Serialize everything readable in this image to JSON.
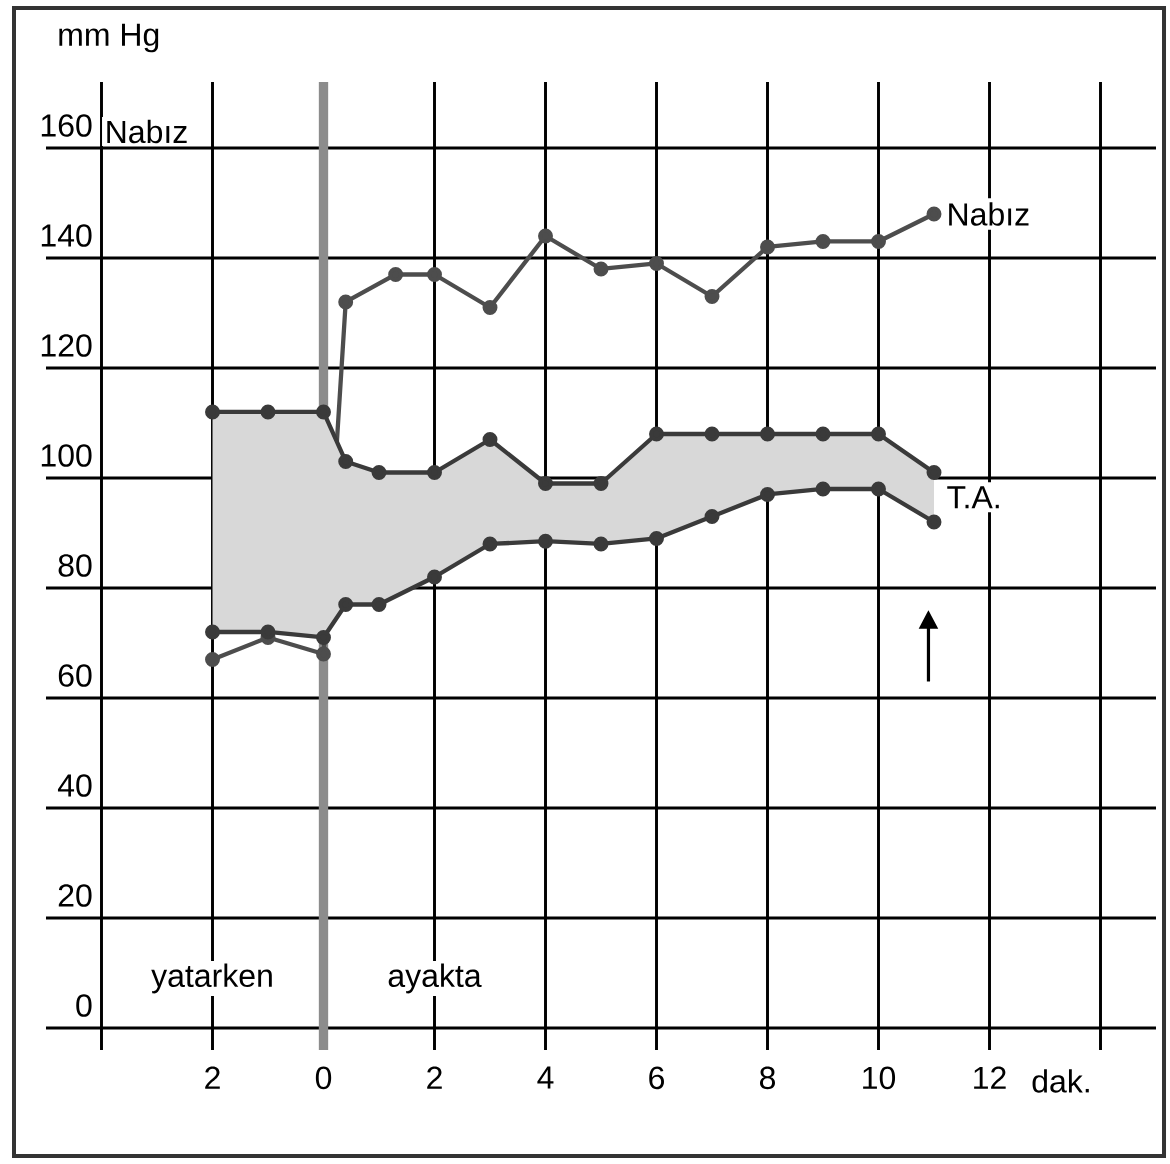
{
  "chart_data": {
    "type": "line",
    "ylabel": "mm Hg",
    "xlabel": "dak.",
    "annotations": [
      "Nabız",
      "yatarken",
      "ayakta"
    ],
    "series": [
      {
        "name": "Nabız",
        "color": "#4d4d4d",
        "x": [
          -2,
          -1,
          0,
          0.4,
          1.3,
          2,
          3,
          4,
          5,
          6,
          7,
          8,
          9,
          10,
          11
        ],
        "values": [
          67,
          71,
          68,
          132,
          137,
          137,
          131,
          144,
          138,
          139,
          133,
          142,
          143,
          143,
          148
        ]
      },
      {
        "name": "T.A.",
        "color": "#3a3a3a",
        "x": [
          -2,
          -1,
          0,
          0.4,
          1,
          2,
          3,
          4,
          5,
          6,
          7,
          8,
          9,
          10,
          11
        ],
        "values": [
          112,
          112,
          112,
          103,
          101,
          101,
          107,
          99,
          99,
          108,
          108,
          108,
          108,
          108,
          101
        ],
        "upper": [
          112,
          112,
          112,
          103,
          101,
          101,
          107,
          99,
          99,
          108,
          108,
          108,
          108,
          108,
          101
        ],
        "lower": [
          72,
          72,
          71,
          77,
          77,
          82,
          88,
          88.5,
          88,
          89,
          93,
          97,
          98,
          98,
          92
        ]
      },
      {
        "color": "#3a3a3a",
        "x": [
          -2,
          -1,
          0,
          0.4,
          1,
          2,
          3,
          4,
          5,
          6,
          7,
          8,
          9,
          10,
          11
        ],
        "values": [
          72,
          72,
          71,
          77,
          77,
          82,
          88,
          88.5,
          88,
          89,
          93,
          97,
          98,
          98,
          92
        ]
      }
    ],
    "xlim": [
      -5,
      15
    ],
    "ylim": [
      -4,
      172
    ],
    "xticks": [
      {
        "value": -4,
        "label": null
      },
      {
        "value": -2,
        "label": "2"
      },
      0,
      2,
      4,
      6,
      8,
      10,
      12,
      {
        "value": 14,
        "label": null
      }
    ],
    "yticks": [
      0,
      20,
      40,
      60,
      80,
      100,
      120,
      140,
      160
    ],
    "grid": true,
    "marker": "circle",
    "line_style": "solid",
    "ref_lines": [
      {
        "axis": "x",
        "value": 0,
        "color": "#8c8c8c"
      }
    ]
  }
}
